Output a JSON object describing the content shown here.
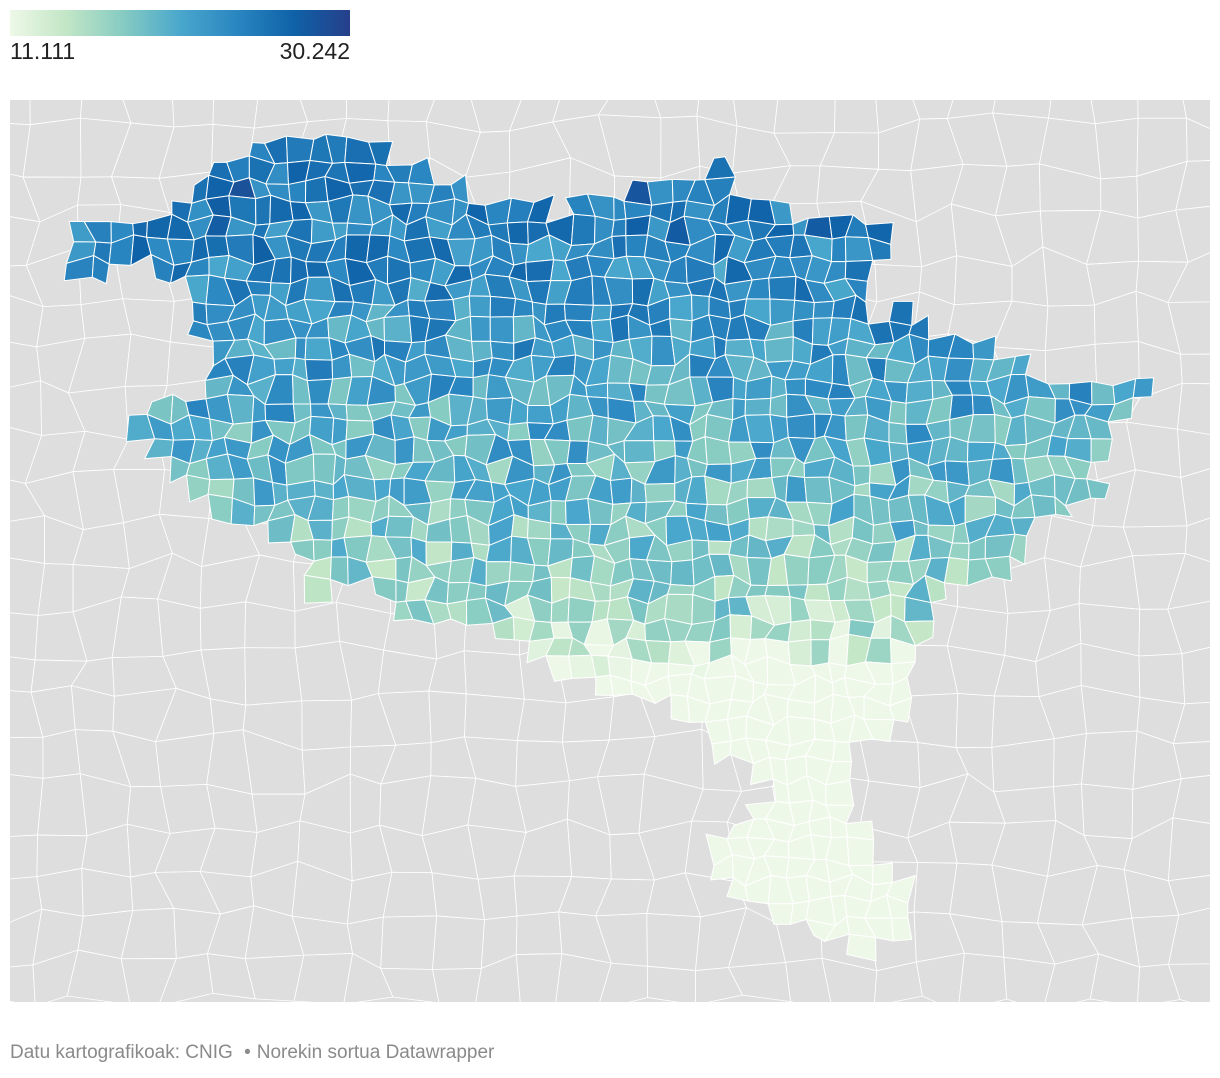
{
  "legend": {
    "min_label": "11.111",
    "max_label": "30.242",
    "min": 11.111,
    "max": 30.242,
    "gradient": [
      "#eef8e8",
      "#c2e6c6",
      "#86cbc2",
      "#4aa7cc",
      "#2a86c0",
      "#0f62a8",
      "#263f8a"
    ]
  },
  "map": {
    "background_color": "#dedede",
    "border_color": "#ffffff",
    "no_data_color": "#dedede"
  },
  "footer": {
    "source": "Datu kartografikoak: CNIG",
    "separator": "•",
    "credit": "Norekin sortua Datawrapper"
  }
}
